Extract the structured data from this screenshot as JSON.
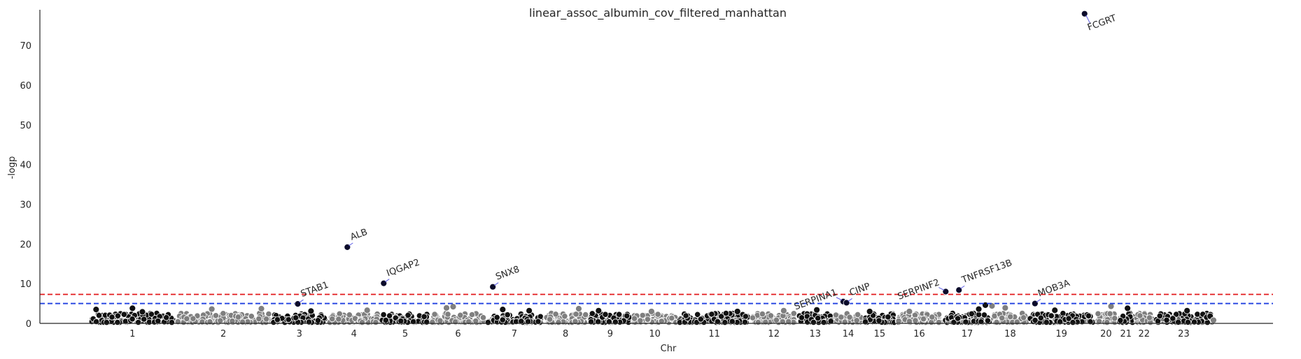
{
  "chart_data": {
    "type": "scatter",
    "title": "linear_assoc_albumin_cov_filtered_manhattan",
    "xlabel": "Chr",
    "ylabel": "-logp",
    "ylim": [
      0,
      79
    ],
    "yticks": [
      0,
      10,
      20,
      30,
      40,
      50,
      60,
      70
    ],
    "grid": false,
    "legend": "none",
    "chromosomes": [
      {
        "label": "1",
        "start": 0.0,
        "end": 2.6
      },
      {
        "label": "2",
        "start": 2.6,
        "end": 5.5
      },
      {
        "label": "3",
        "start": 5.5,
        "end": 7.2
      },
      {
        "label": "4",
        "start": 7.2,
        "end": 8.8
      },
      {
        "label": "5",
        "start": 8.8,
        "end": 10.3
      },
      {
        "label": "6",
        "start": 10.3,
        "end": 12.0
      },
      {
        "label": "7",
        "start": 12.0,
        "end": 13.7
      },
      {
        "label": "8",
        "start": 13.7,
        "end": 15.1
      },
      {
        "label": "9",
        "start": 15.1,
        "end": 16.4
      },
      {
        "label": "10",
        "start": 16.4,
        "end": 17.8
      },
      {
        "label": "11",
        "start": 17.8,
        "end": 20.0
      },
      {
        "label": "12",
        "start": 20.0,
        "end": 21.4
      },
      {
        "label": "13",
        "start": 21.4,
        "end": 22.5
      },
      {
        "label": "14",
        "start": 22.5,
        "end": 23.4
      },
      {
        "label": "15",
        "start": 23.4,
        "end": 24.4
      },
      {
        "label": "16",
        "start": 24.4,
        "end": 25.8
      },
      {
        "label": "17",
        "start": 25.8,
        "end": 27.3
      },
      {
        "label": "18",
        "start": 27.3,
        "end": 28.4
      },
      {
        "label": "19",
        "start": 28.4,
        "end": 30.4
      },
      {
        "label": "20",
        "start": 30.4,
        "end": 31.1
      },
      {
        "label": "21",
        "start": 31.1,
        "end": 31.6
      },
      {
        "label": "22",
        "start": 31.6,
        "end": 32.2
      },
      {
        "label": "23",
        "start": 32.2,
        "end": 34.0
      }
    ],
    "xlim": [
      -1.5,
      35.8
    ],
    "thresholds": [
      {
        "value": 7.3,
        "color": "#e31a1c"
      },
      {
        "value": 5.0,
        "color": "#1f3fe0"
      }
    ],
    "colors": {
      "odd": "#111111",
      "even": "#7f7f7f",
      "edge": "#ffffff",
      "arrow": "#5a5ae6",
      "axis": "#262626"
    },
    "annotated_hits": [
      {
        "gene": "FCGRT",
        "chr": "19",
        "x": 30.1,
        "y": 78.0
      },
      {
        "gene": "ALB",
        "chr": "4",
        "x": 7.8,
        "y": 19.2
      },
      {
        "gene": "IQGAP2",
        "chr": "5",
        "x": 8.9,
        "y": 10.1
      },
      {
        "gene": "SNX8",
        "chr": "7",
        "x": 12.2,
        "y": 9.2
      },
      {
        "gene": "STAB1",
        "chr": "3",
        "x": 6.3,
        "y": 4.9
      },
      {
        "gene": "SERPINA1",
        "chr": "14",
        "x": 22.8,
        "y": 5.5
      },
      {
        "gene": "CINP",
        "chr": "14",
        "x": 22.9,
        "y": 5.2
      },
      {
        "gene": "SERPINF2",
        "chr": "17",
        "x": 25.9,
        "y": 8.0
      },
      {
        "gene": "TNFRSF13B",
        "chr": "17",
        "x": 26.3,
        "y": 8.4
      },
      {
        "gene": "MOB3A",
        "chr": "19",
        "x": 28.6,
        "y": 5.0
      }
    ],
    "other_points": [
      {
        "x": 0.2,
        "y": 3.5
      },
      {
        "x": 1.3,
        "y": 3.8
      },
      {
        "x": 1.6,
        "y": 2.9
      },
      {
        "x": 3.7,
        "y": 3.6
      },
      {
        "x": 5.2,
        "y": 3.7
      },
      {
        "x": 6.7,
        "y": 3.1
      },
      {
        "x": 8.4,
        "y": 3.3
      },
      {
        "x": 10.8,
        "y": 3.9
      },
      {
        "x": 11.0,
        "y": 4.2
      },
      {
        "x": 12.5,
        "y": 3.5
      },
      {
        "x": 13.3,
        "y": 3.2
      },
      {
        "x": 14.8,
        "y": 3.7
      },
      {
        "x": 15.4,
        "y": 3.2
      },
      {
        "x": 17.0,
        "y": 3.0
      },
      {
        "x": 19.6,
        "y": 3.0
      },
      {
        "x": 21.0,
        "y": 3.2
      },
      {
        "x": 22.0,
        "y": 3.4
      },
      {
        "x": 23.6,
        "y": 3.0
      },
      {
        "x": 24.8,
        "y": 3.0
      },
      {
        "x": 26.9,
        "y": 3.6
      },
      {
        "x": 27.1,
        "y": 4.6
      },
      {
        "x": 27.3,
        "y": 4.4
      },
      {
        "x": 27.7,
        "y": 3.9
      },
      {
        "x": 29.2,
        "y": 3.3
      },
      {
        "x": 30.9,
        "y": 4.3
      },
      {
        "x": 31.4,
        "y": 3.8
      },
      {
        "x": 33.2,
        "y": 3.2
      },
      {
        "x": 33.9,
        "y": 1.8
      },
      {
        "x": 34.0,
        "y": 0.8
      }
    ]
  }
}
